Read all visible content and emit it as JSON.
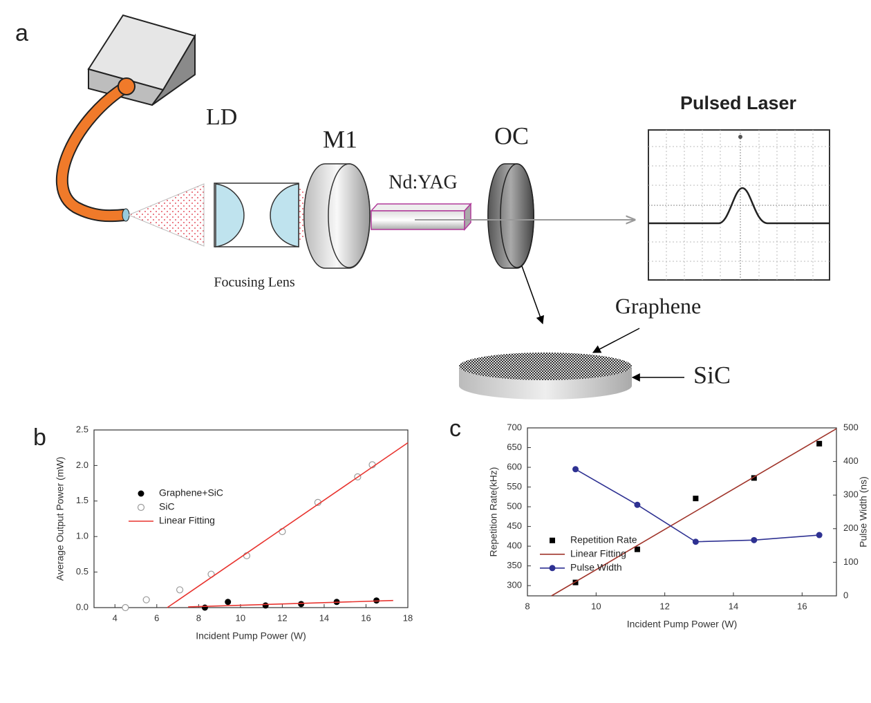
{
  "diagram": {
    "panel_label": "a",
    "labels": {
      "ld": "LD",
      "m1": "M1",
      "ndyag": "Nd:YAG",
      "oc": "OC",
      "focusing_lens": "Focusing Lens",
      "pulsed_laser": "Pulsed Laser",
      "graphene": "Graphene",
      "sic": "SiC"
    }
  },
  "chart_data": [
    {
      "type": "scatter",
      "panel_label": "b",
      "xlabel": "Incident Pump Power (W)",
      "ylabel": "Average Output Power (mW)",
      "xlim": [
        3,
        18
      ],
      "xticks": [
        4,
        6,
        8,
        10,
        12,
        14,
        16,
        18
      ],
      "ylim": [
        0,
        2.5
      ],
      "yticks": [
        {
          "value": 0,
          "label": "0.0"
        },
        0.5,
        {
          "value": 1,
          "label": "1.0"
        },
        1.5,
        {
          "value": 2,
          "label": "2.0"
        },
        2.5
      ],
      "legend": "upper-left",
      "series": [
        {
          "name": "Graphene+SiC",
          "color": "#000000",
          "marker": "filled-circle",
          "x": [
            8.3,
            9.4,
            11.2,
            12.9,
            14.6,
            16.5
          ],
          "values": [
            0.0,
            0.08,
            0.03,
            0.05,
            0.08,
            0.1
          ]
        },
        {
          "name": "SiC",
          "color": "#9a9a9a",
          "marker": "open-circle",
          "x": [
            4.5,
            5.5,
            7.1,
            8.6,
            10.3,
            12.0,
            13.7,
            15.6,
            16.3
          ],
          "values": [
            0.0,
            0.11,
            0.25,
            0.47,
            0.73,
            1.07,
            1.48,
            1.84,
            2.01
          ]
        },
        {
          "name": "Linear Fitting",
          "color": "#e8342f",
          "marker": "line",
          "x": [
            6.5,
            18
          ],
          "values": [
            0,
            2.32
          ]
        },
        {
          "color": "#e8342f",
          "marker": "line",
          "x": [
            7.5,
            17.3
          ],
          "values": [
            0.01,
            0.1
          ]
        }
      ]
    },
    {
      "type": "scatter",
      "panel_label": "c",
      "xlabel": "Incident Pump Power (W)",
      "ylabel": "Repetition Rate(kHz)",
      "y2label": "Pulse Width (ns)",
      "xlim": [
        8,
        17
      ],
      "xticks": [
        8,
        10,
        12,
        14,
        16
      ],
      "ylim": [
        274,
        700
      ],
      "yticks": [
        300,
        350,
        400,
        450,
        500,
        550,
        600,
        650,
        700
      ],
      "y2lim": [
        0,
        500
      ],
      "y2ticks": [
        0,
        100,
        200,
        300,
        400,
        500
      ],
      "legend": "center-left",
      "series": [
        {
          "name": "Repetition Rate",
          "color": "#000000",
          "marker": "square",
          "x": [
            9.4,
            11.2,
            12.9,
            14.6,
            16.5
          ],
          "values": [
            308,
            392,
            521,
            573,
            660
          ]
        },
        {
          "name": "Linear Fitting",
          "color": "#a0342a",
          "marker": "line",
          "x": [
            8.7,
            17
          ],
          "values": [
            274,
            698
          ]
        },
        {
          "name": "Pulse Width",
          "color": "#2e3192",
          "marker": "line-circle",
          "axis": "y2",
          "x": [
            9.4,
            11.2,
            12.9,
            14.6,
            16.5
          ],
          "values": [
            377,
            271,
            161,
            166,
            181
          ]
        }
      ]
    }
  ]
}
